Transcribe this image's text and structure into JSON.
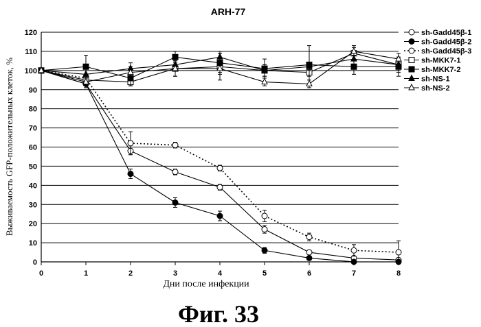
{
  "figure_caption": "Фиг.  33",
  "chart_data": {
    "type": "line",
    "title": "ARH-77",
    "xlabel": "Дни после инфекции",
    "ylabel": "Выживаемость GFP-положительных клеток, %",
    "x": [
      0,
      1,
      2,
      3,
      4,
      5,
      6,
      7,
      8
    ],
    "xlim": [
      0,
      8
    ],
    "ylim": [
      0,
      120
    ],
    "yticks": [
      0,
      10,
      20,
      30,
      40,
      50,
      60,
      70,
      80,
      90,
      100,
      110,
      120
    ],
    "grid": "horizontal",
    "legend_position": "right",
    "series": [
      {
        "name": "sh-Gadd45β-1",
        "marker": "open-circle",
        "line": "solid",
        "values": [
          100,
          93,
          58,
          47,
          39,
          17,
          5,
          2,
          1
        ],
        "errors": [
          0,
          2,
          2,
          1.5,
          1.5,
          2,
          0,
          0,
          0
        ]
      },
      {
        "name": "sh-Gadd45β-2",
        "marker": "filled-circle",
        "line": "solid",
        "values": [
          100,
          93,
          46,
          31,
          24,
          6,
          2,
          0,
          0
        ],
        "errors": [
          0,
          2,
          2.5,
          2.5,
          2.5,
          1.5,
          0,
          0,
          0
        ]
      },
      {
        "name": "sh-Gadd45β-3",
        "marker": "open-circle",
        "line": "dotted",
        "values": [
          100,
          96,
          62,
          61,
          49,
          24,
          13,
          6,
          5
        ],
        "errors": [
          0,
          2,
          6,
          1.5,
          1.5,
          3,
          2,
          3,
          6
        ]
      },
      {
        "name": "sh-MKK7-1",
        "marker": "open-square",
        "line": "solid",
        "values": [
          100,
          95,
          94,
          101,
          102,
          100,
          99,
          109,
          103
        ],
        "errors": [
          0,
          3,
          2,
          4,
          7,
          3,
          2,
          4,
          3
        ]
      },
      {
        "name": "sh-MKK7-2",
        "marker": "filled-square",
        "line": "solid",
        "values": [
          100,
          102,
          96,
          107,
          104,
          101,
          103,
          102,
          102
        ],
        "errors": [
          0,
          6,
          4,
          3,
          5,
          5,
          10,
          4,
          5
        ]
      },
      {
        "name": "sh-NS-1",
        "marker": "filled-triangle",
        "line": "solid",
        "values": [
          100,
          98,
          101,
          103,
          107,
          100,
          102,
          106,
          103
        ],
        "errors": [
          0,
          3,
          3,
          2,
          3,
          3,
          2,
          3,
          4
        ]
      },
      {
        "name": "sh-NS-2",
        "marker": "open-triangle",
        "line": "solid",
        "values": [
          100,
          94,
          99,
          101,
          101,
          94,
          93,
          110,
          106
        ],
        "errors": [
          0,
          3,
          3,
          4,
          3,
          2,
          2,
          2,
          3
        ]
      }
    ]
  }
}
